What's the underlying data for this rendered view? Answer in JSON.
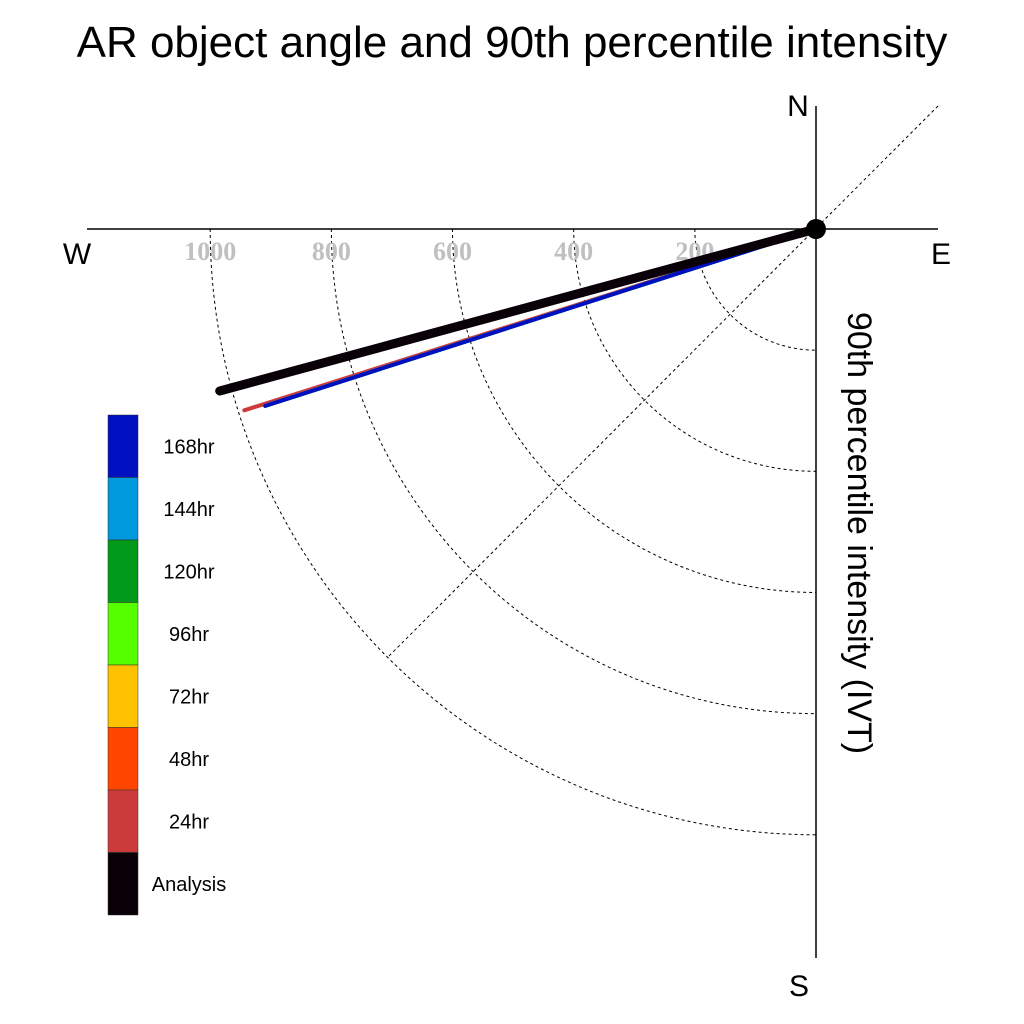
{
  "chart_data": {
    "type": "polar-line",
    "title": "AR object angle and 90th percentile intensity",
    "ylabel": "90th percentile intensity (IVT)",
    "compass": {
      "north": "N",
      "south": "S",
      "east": "E",
      "west": "W"
    },
    "radial_ticks": [
      200,
      400,
      600,
      800,
      1000
    ],
    "radial_tick_labels": [
      "200",
      "400",
      "600",
      "800",
      "1000"
    ],
    "rmax": 1200,
    "series": [
      {
        "name": "24hr",
        "color": "#cc3b3b",
        "angle_deg": 197.6,
        "intensity": 990
      },
      {
        "name": "48hr",
        "color": "#ff4500",
        "angle_deg": 197.8,
        "intensity": 955
      },
      {
        "name": "72hr",
        "color": "#ffc200",
        "angle_deg": 197.8,
        "intensity": 955
      },
      {
        "name": "96hr",
        "color": "#55ff00",
        "angle_deg": 197.8,
        "intensity": 955
      },
      {
        "name": "120hr",
        "color": "#00991a",
        "angle_deg": 197.8,
        "intensity": 955
      },
      {
        "name": "144hr",
        "color": "#0099dd",
        "angle_deg": 197.8,
        "intensity": 955
      },
      {
        "name": "168hr",
        "color": "#0010c0",
        "angle_deg": 197.8,
        "intensity": 955
      },
      {
        "name": "Analysis",
        "color": "#0a0008",
        "angle_deg": 195.2,
        "intensity": 1020
      }
    ],
    "legend": [
      {
        "label": "168hr",
        "color": "#0010c0"
      },
      {
        "label": "144hr",
        "color": "#0099dd"
      },
      {
        "label": "120hr",
        "color": "#00991a"
      },
      {
        "label": "96hr",
        "color": "#55ff00"
      },
      {
        "label": "72hr",
        "color": "#ffc200"
      },
      {
        "label": "48hr",
        "color": "#ff4500"
      },
      {
        "label": "24hr",
        "color": "#cc3b3b"
      },
      {
        "label": "Analysis",
        "color": "#0a0008"
      }
    ]
  }
}
